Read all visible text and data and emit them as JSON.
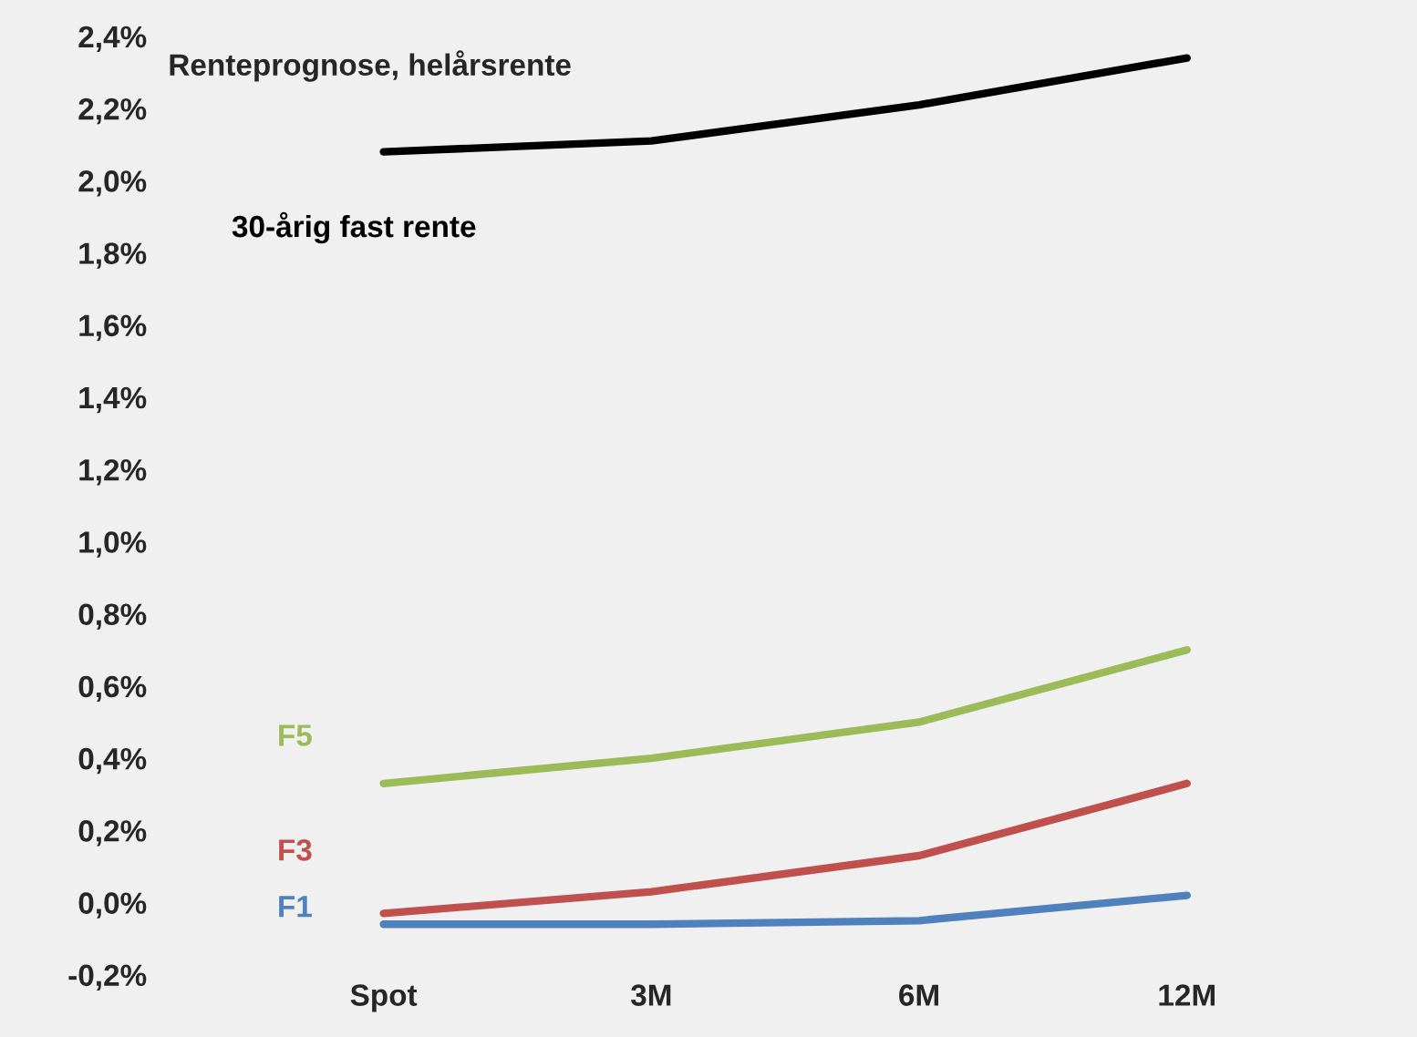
{
  "chart_data": {
    "type": "line",
    "title": "Renteprognose, helårsrente",
    "categories": [
      "Spot",
      "3M",
      "6M",
      "12M"
    ],
    "series": [
      {
        "name": "30-årig fast rente",
        "color": "#000000",
        "values": [
          2.08,
          2.11,
          2.21,
          2.34
        ]
      },
      {
        "name": "F5",
        "color": "#9bbb59",
        "values": [
          0.33,
          0.4,
          0.5,
          0.7
        ]
      },
      {
        "name": "F3",
        "color": "#c0504d",
        "values": [
          -0.03,
          0.03,
          0.13,
          0.33
        ]
      },
      {
        "name": "F1",
        "color": "#4f81bd",
        "values": [
          -0.06,
          -0.06,
          -0.05,
          0.02
        ]
      }
    ],
    "ylim": [
      -0.2,
      2.4
    ],
    "yticks": [
      {
        "value": -0.2,
        "label": "-0,2%"
      },
      {
        "value": 0,
        "label": "0,0%"
      },
      {
        "value": 0.2,
        "label": "0,2%"
      },
      {
        "value": 0.4,
        "label": "0,4%"
      },
      {
        "value": 0.6,
        "label": "0,6%"
      },
      {
        "value": 0.8,
        "label": "0,8%"
      },
      {
        "value": 1.0,
        "label": "1,0%"
      },
      {
        "value": 1.2,
        "label": "1,2%"
      },
      {
        "value": 1.4,
        "label": "1,4%"
      },
      {
        "value": 1.6,
        "label": "1,6%"
      },
      {
        "value": 1.8,
        "label": "1,8%"
      },
      {
        "value": 2.0,
        "label": "2,0%"
      },
      {
        "value": 2.2,
        "label": "2,2%"
      },
      {
        "value": 2.4,
        "label": "2,4%"
      }
    ],
    "grid": false,
    "legend": false,
    "marker": "none",
    "line_style": "solid"
  }
}
